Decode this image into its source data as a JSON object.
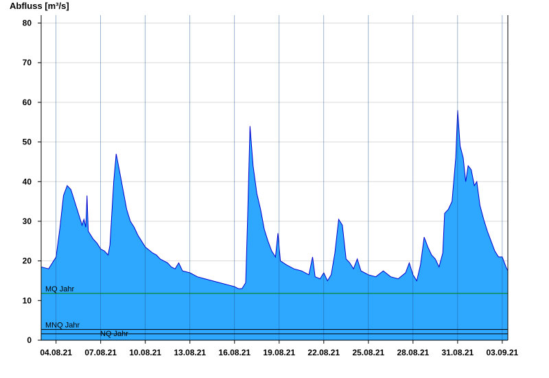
{
  "chart_data": {
    "type": "area",
    "title": "",
    "ylabel": "Abfluss [m³/s]",
    "xlabel": "",
    "ylim": [
      0,
      82
    ],
    "yticks": [
      0,
      10,
      20,
      30,
      40,
      50,
      60,
      70,
      80
    ],
    "xlim": [
      "03.08.21 00:00",
      "03.09.21 09:00"
    ],
    "xticks": [
      "04.08.21",
      "07.08.21",
      "10.08.21",
      "13.08.21",
      "16.08.21",
      "19.08.21",
      "22.08.21",
      "25.08.21",
      "28.08.21",
      "31.08.21",
      "03.09.21"
    ],
    "grid": true,
    "colors": {
      "fill": "#2ea8ff",
      "line": "#0000cc",
      "mq": "#008000",
      "ref": "#000000",
      "grid": "#d9d9d9"
    },
    "reference_lines": [
      {
        "label": "MQ Jahr",
        "value": 11.8
      },
      {
        "label": "MNQ Jahr",
        "value": 2.7
      },
      {
        "label": "NQ Jahr",
        "value": 1.6
      }
    ],
    "series": [
      {
        "values": [
          [
            "03.08.21 00:00",
            18.5
          ],
          [
            "03.08.21 12:00",
            18.0
          ],
          [
            "03.08.21 18:00",
            19.5
          ],
          [
            "04.08.21 00:00",
            21.0
          ],
          [
            "04.08.21 06:00",
            28.0
          ],
          [
            "04.08.21 12:00",
            36.5
          ],
          [
            "04.08.21 18:00",
            39.0
          ],
          [
            "05.08.21 00:00",
            38.0
          ],
          [
            "05.08.21 06:00",
            35.0
          ],
          [
            "05.08.21 12:00",
            32.0
          ],
          [
            "05.08.21 18:00",
            29.0
          ],
          [
            "05.08.21 21:00",
            30.5
          ],
          [
            "06.08.21 00:00",
            28.5
          ],
          [
            "06.08.21 02:00",
            36.5
          ],
          [
            "06.08.21 04:00",
            27.5
          ],
          [
            "06.08.21 12:00",
            25.5
          ],
          [
            "06.08.21 18:00",
            24.5
          ],
          [
            "07.08.21 00:00",
            23.0
          ],
          [
            "07.08.21 06:00",
            22.5
          ],
          [
            "07.08.21 12:00",
            21.5
          ],
          [
            "07.08.21 15:00",
            24.0
          ],
          [
            "07.08.21 21:00",
            40.0
          ],
          [
            "08.08.21 01:00",
            47.0
          ],
          [
            "08.08.21 06:00",
            43.0
          ],
          [
            "08.08.21 12:00",
            38.0
          ],
          [
            "08.08.21 18:00",
            33.0
          ],
          [
            "09.08.21 00:00",
            30.0
          ],
          [
            "09.08.21 06:00",
            28.5
          ],
          [
            "09.08.21 12:00",
            26.5
          ],
          [
            "09.08.21 18:00",
            25.0
          ],
          [
            "10.08.21 00:00",
            23.5
          ],
          [
            "10.08.21 12:00",
            22.0
          ],
          [
            "10.08.21 18:00",
            21.5
          ],
          [
            "11.08.21 00:00",
            20.5
          ],
          [
            "11.08.21 12:00",
            19.5
          ],
          [
            "11.08.21 18:00",
            18.5
          ],
          [
            "12.08.21 00:00",
            18.0
          ],
          [
            "12.08.21 06:00",
            19.5
          ],
          [
            "12.08.21 12:00",
            17.5
          ],
          [
            "13.08.21 00:00",
            17.0
          ],
          [
            "13.08.21 12:00",
            16.0
          ],
          [
            "14.08.21 00:00",
            15.5
          ],
          [
            "14.08.21 12:00",
            15.0
          ],
          [
            "15.08.21 00:00",
            14.5
          ],
          [
            "15.08.21 12:00",
            14.0
          ],
          [
            "16.08.21 00:00",
            13.5
          ],
          [
            "16.08.21 06:00",
            13.0
          ],
          [
            "16.08.21 12:00",
            13.0
          ],
          [
            "16.08.21 18:00",
            14.5
          ],
          [
            "16.08.21 21:00",
            30.0
          ],
          [
            "17.08.21 01:00",
            54.0
          ],
          [
            "17.08.21 06:00",
            44.0
          ],
          [
            "17.08.21 12:00",
            37.0
          ],
          [
            "17.08.21 18:00",
            33.0
          ],
          [
            "18.08.21 00:00",
            28.0
          ],
          [
            "18.08.21 06:00",
            25.0
          ],
          [
            "18.08.21 12:00",
            22.5
          ],
          [
            "18.08.21 18:00",
            21.0
          ],
          [
            "18.08.21 22:00",
            27.0
          ],
          [
            "19.08.21 02:00",
            20.0
          ],
          [
            "19.08.21 12:00",
            19.0
          ],
          [
            "20.08.21 00:00",
            18.0
          ],
          [
            "20.08.21 12:00",
            17.5
          ],
          [
            "21.08.21 00:00",
            16.5
          ],
          [
            "21.08.21 06:00",
            21.0
          ],
          [
            "21.08.21 10:00",
            16.0
          ],
          [
            "21.08.21 18:00",
            15.5
          ],
          [
            "22.08.21 00:00",
            17.0
          ],
          [
            "22.08.21 06:00",
            15.0
          ],
          [
            "22.08.21 12:00",
            16.5
          ],
          [
            "22.08.21 18:00",
            22.0
          ],
          [
            "23.08.21 00:00",
            30.5
          ],
          [
            "23.08.21 06:00",
            29.0
          ],
          [
            "23.08.21 12:00",
            20.5
          ],
          [
            "23.08.21 18:00",
            19.5
          ],
          [
            "24.08.21 00:00",
            18.0
          ],
          [
            "24.08.21 06:00",
            20.5
          ],
          [
            "24.08.21 12:00",
            17.5
          ],
          [
            "25.08.21 00:00",
            16.5
          ],
          [
            "25.08.21 12:00",
            16.0
          ],
          [
            "26.08.21 00:00",
            17.5
          ],
          [
            "26.08.21 12:00",
            16.0
          ],
          [
            "27.08.21 00:00",
            15.5
          ],
          [
            "27.08.21 12:00",
            17.0
          ],
          [
            "27.08.21 18:00",
            19.5
          ],
          [
            "28.08.21 00:00",
            16.5
          ],
          [
            "28.08.21 06:00",
            15.0
          ],
          [
            "28.08.21 12:00",
            19.0
          ],
          [
            "28.08.21 18:00",
            26.0
          ],
          [
            "29.08.21 00:00",
            23.5
          ],
          [
            "29.08.21 06:00",
            21.5
          ],
          [
            "29.08.21 12:00",
            20.5
          ],
          [
            "29.08.21 18:00",
            18.5
          ],
          [
            "30.08.21 00:00",
            22.0
          ],
          [
            "30.08.21 03:00",
            32.0
          ],
          [
            "30.08.21 09:00",
            33.0
          ],
          [
            "30.08.21 15:00",
            35.0
          ],
          [
            "30.08.21 21:00",
            46.0
          ],
          [
            "31.08.21 00:00",
            58.0
          ],
          [
            "31.08.21 04:00",
            49.0
          ],
          [
            "31.08.21 09:00",
            46.0
          ],
          [
            "31.08.21 13:00",
            40.0
          ],
          [
            "31.08.21 17:00",
            44.0
          ],
          [
            "31.08.21 22:00",
            43.0
          ],
          [
            "01.09.21 03:00",
            39.0
          ],
          [
            "01.09.21 07:00",
            40.0
          ],
          [
            "01.09.21 12:00",
            34.0
          ],
          [
            "01.09.21 18:00",
            30.5
          ],
          [
            "02.09.21 00:00",
            27.5
          ],
          [
            "02.09.21 06:00",
            25.0
          ],
          [
            "02.09.21 12:00",
            22.5
          ],
          [
            "02.09.21 18:00",
            21.0
          ],
          [
            "03.09.21 00:00",
            21.0
          ],
          [
            "03.09.21 06:00",
            18.5
          ],
          [
            "03.09.21 09:00",
            17.5
          ]
        ]
      }
    ]
  }
}
